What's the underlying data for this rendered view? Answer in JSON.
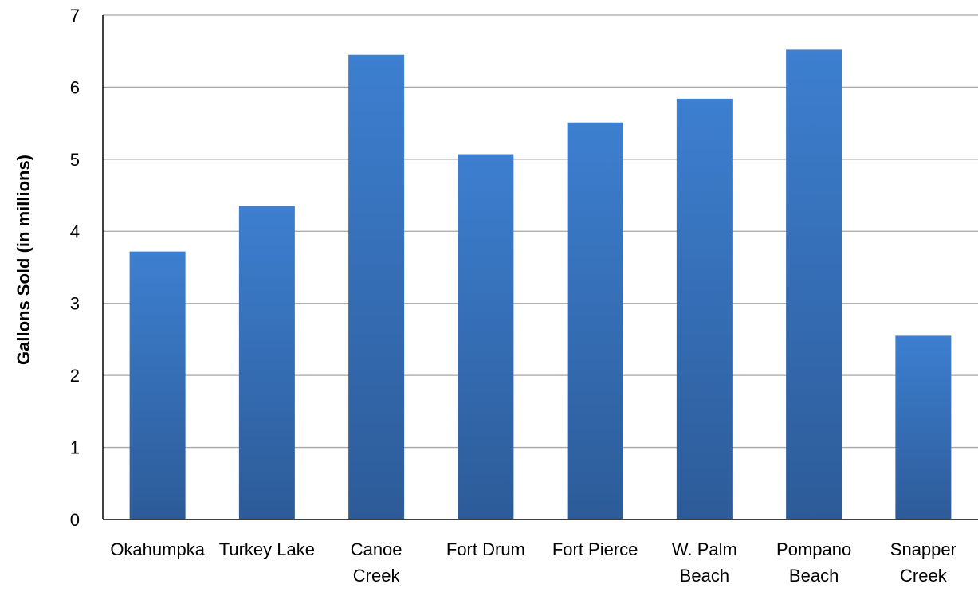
{
  "chart_data": {
    "type": "bar",
    "ylabel": "Gallons Sold (in millions)",
    "xlabel": "",
    "ylim": [
      0,
      7
    ],
    "yticks": [
      0,
      1,
      2,
      3,
      4,
      5,
      6,
      7
    ],
    "grid": true,
    "categories": [
      [
        "Okahumpka"
      ],
      [
        "Turkey Lake"
      ],
      [
        "Canoe",
        "Creek"
      ],
      [
        "Fort Drum"
      ],
      [
        "Fort Pierce"
      ],
      [
        "W. Palm",
        "Beach"
      ],
      [
        "Pompano",
        "Beach"
      ],
      [
        "Snapper",
        "Creek"
      ]
    ],
    "values": [
      3.72,
      4.35,
      6.45,
      5.07,
      5.51,
      5.84,
      6.52,
      2.55
    ],
    "colors": {
      "bar_top": "#3d7fd0",
      "bar_bottom": "#2d5b98",
      "grid": "#a6a6a6",
      "axis": "#000000"
    }
  }
}
